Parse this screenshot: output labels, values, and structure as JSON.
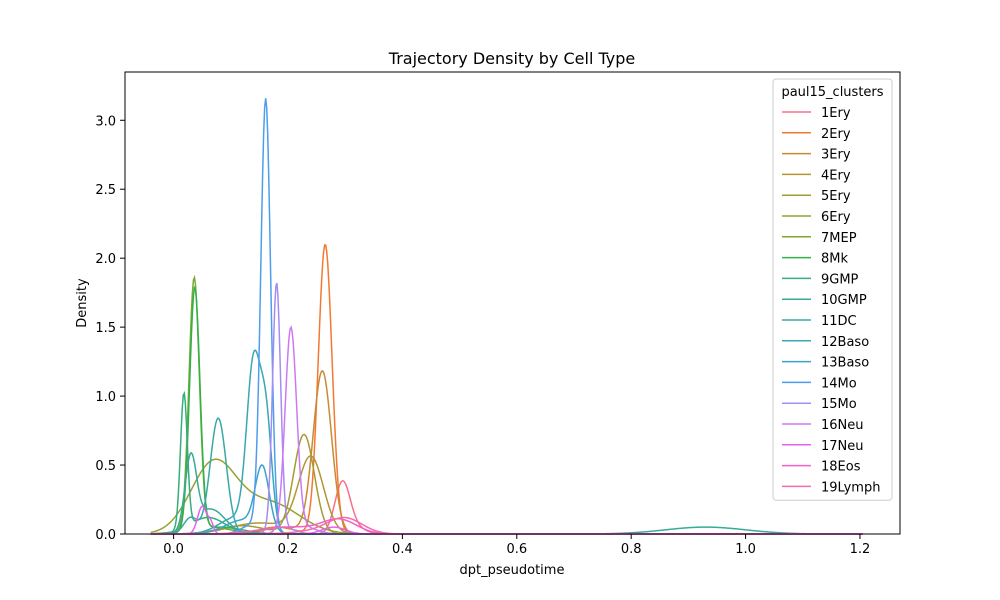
{
  "chart_data": {
    "type": "line",
    "title": "Trajectory Density by Cell Type",
    "xlabel": "dpt_pseudotime",
    "ylabel": "Density",
    "xlim": [
      -0.085,
      1.27
    ],
    "ylim": [
      0,
      3.35
    ],
    "x_ticks": [
      0.0,
      0.2,
      0.4,
      0.6,
      0.8,
      1.0,
      1.2
    ],
    "x_tick_labels": [
      "0.0",
      "0.2",
      "0.4",
      "0.6",
      "0.8",
      "1.0",
      "1.2"
    ],
    "y_ticks": [
      0.0,
      0.5,
      1.0,
      1.5,
      2.0,
      2.5,
      3.0
    ],
    "y_tick_labels": [
      "0.0",
      "0.5",
      "1.0",
      "1.5",
      "2.0",
      "2.5",
      "3.0"
    ],
    "grid": false,
    "legend": {
      "title": "paul15_clusters",
      "placement": "upper-right"
    },
    "series": [
      {
        "name": "1Ery",
        "color": "#f77189",
        "components": [
          [
            0.295,
            0.013,
            0.34
          ],
          [
            0.31,
            0.02,
            0.06
          ]
        ]
      },
      {
        "name": "2Ery",
        "color": "#f37932",
        "components": [
          [
            0.265,
            0.012,
            2.1
          ],
          [
            0.18,
            0.03,
            0.05
          ]
        ]
      },
      {
        "name": "3Ery",
        "color": "#ca8a33",
        "components": [
          [
            0.26,
            0.016,
            1.18
          ],
          [
            0.19,
            0.03,
            0.05
          ]
        ]
      },
      {
        "name": "4Ery",
        "color": "#b49434",
        "components": [
          [
            0.24,
            0.022,
            0.55
          ],
          [
            0.15,
            0.05,
            0.08
          ]
        ]
      },
      {
        "name": "5Ery",
        "color": "#a39c34",
        "components": [
          [
            0.228,
            0.018,
            0.72
          ],
          [
            0.12,
            0.04,
            0.06
          ]
        ]
      },
      {
        "name": "6Ery",
        "color": "#97a234",
        "components": [
          [
            0.07,
            0.04,
            0.51
          ],
          [
            0.17,
            0.05,
            0.22
          ]
        ]
      },
      {
        "name": "7MEP",
        "color": "#7ba933",
        "components": [
          [
            0.036,
            0.009,
            1.82
          ],
          [
            0.06,
            0.04,
            0.05
          ]
        ]
      },
      {
        "name": "8Mk",
        "color": "#33b04a",
        "components": [
          [
            0.037,
            0.009,
            1.76
          ],
          [
            0.08,
            0.04,
            0.05
          ]
        ]
      },
      {
        "name": "9GMP",
        "color": "#35ad7e",
        "components": [
          [
            0.018,
            0.006,
            0.98
          ],
          [
            0.06,
            0.03,
            0.12
          ]
        ]
      },
      {
        "name": "10GMP",
        "color": "#36ab97",
        "components": [
          [
            0.03,
            0.01,
            0.52
          ],
          [
            0.065,
            0.025,
            0.18
          ],
          [
            0.93,
            0.07,
            0.05
          ]
        ]
      },
      {
        "name": "11DC",
        "color": "#38a9a7",
        "components": [
          [
            0.078,
            0.014,
            0.84
          ],
          [
            0.03,
            0.012,
            0.12
          ]
        ]
      },
      {
        "name": "12Baso",
        "color": "#39a7b5",
        "components": [
          [
            0.14,
            0.012,
            1.18
          ],
          [
            0.162,
            0.01,
            0.75
          ],
          [
            0.11,
            0.03,
            0.12
          ]
        ]
      },
      {
        "name": "13Baso",
        "color": "#3ba4c6",
        "components": [
          [
            0.155,
            0.012,
            0.45
          ],
          [
            0.12,
            0.03,
            0.1
          ]
        ]
      },
      {
        "name": "14Mo",
        "color": "#4e9ded",
        "components": [
          [
            0.161,
            0.0085,
            3.12
          ],
          [
            0.14,
            0.02,
            0.07
          ]
        ]
      },
      {
        "name": "15Mo",
        "color": "#a48cf4",
        "components": [
          [
            0.18,
            0.007,
            1.78
          ],
          [
            0.19,
            0.02,
            0.05
          ]
        ]
      },
      {
        "name": "16Neu",
        "color": "#cc7af4",
        "components": [
          [
            0.205,
            0.01,
            1.45
          ],
          [
            0.22,
            0.025,
            0.06
          ]
        ]
      },
      {
        "name": "17Neu",
        "color": "#e960ee",
        "components": [
          [
            0.05,
            0.008,
            0.2
          ],
          [
            0.065,
            0.005,
            0.07
          ],
          [
            0.28,
            0.02,
            0.05
          ]
        ]
      },
      {
        "name": "18Eos",
        "color": "#f45fcb",
        "components": [
          [
            0.29,
            0.03,
            0.1
          ],
          [
            0.2,
            0.05,
            0.05
          ]
        ]
      },
      {
        "name": "19Lymph",
        "color": "#f56ab0",
        "components": [
          [
            0.3,
            0.03,
            0.11
          ],
          [
            0.25,
            0.04,
            0.02
          ]
        ]
      }
    ]
  }
}
